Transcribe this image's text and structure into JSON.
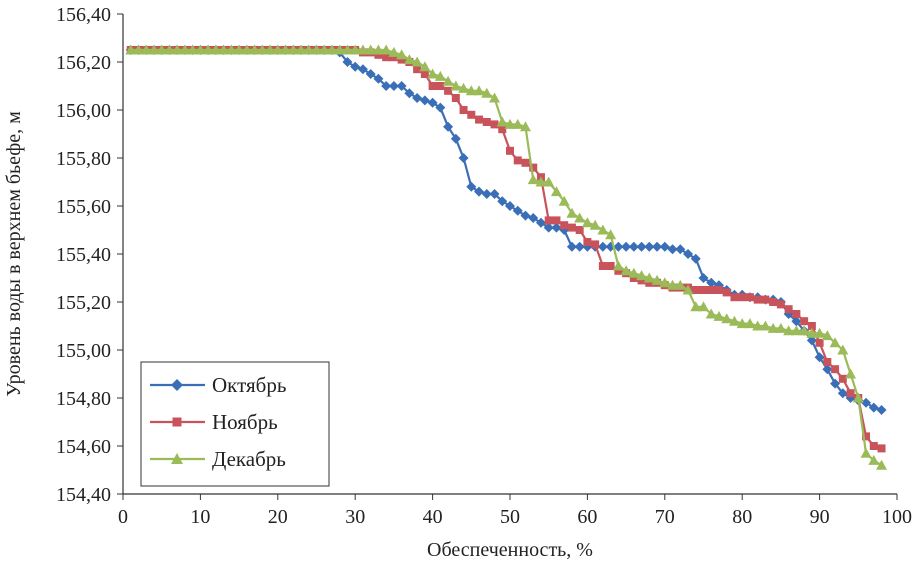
{
  "chart_data": {
    "type": "line",
    "title": "",
    "xlabel": "Обеспеченность, %",
    "ylabel": "Уровень воды в верхнем бьефе, м",
    "xlim": [
      0,
      100
    ],
    "ylim": [
      154.4,
      156.4
    ],
    "x_ticks": [
      0,
      10,
      20,
      30,
      40,
      50,
      60,
      70,
      80,
      90,
      100
    ],
    "x_tick_labels": [
      "0",
      "10",
      "20",
      "30",
      "40",
      "50",
      "60",
      "70",
      "80",
      "90",
      "100"
    ],
    "y_ticks": [
      154.4,
      154.6,
      154.8,
      155.0,
      155.2,
      155.4,
      155.6,
      155.8,
      156.0,
      156.2,
      156.4
    ],
    "y_tick_labels": [
      "154,40",
      "154,60",
      "154,80",
      "155,00",
      "155,20",
      "155,40",
      "155,60",
      "155,80",
      "156,00",
      "156,20",
      "156,40"
    ],
    "grid": false,
    "legend_position": "bottom-left",
    "series": [
      {
        "name": "Октябрь",
        "color": "#3A6FB7",
        "marker": "diamond",
        "points": [
          [
            1,
            156.25
          ],
          [
            2,
            156.25
          ],
          [
            3,
            156.25
          ],
          [
            4,
            156.25
          ],
          [
            5,
            156.25
          ],
          [
            6,
            156.25
          ],
          [
            7,
            156.25
          ],
          [
            8,
            156.25
          ],
          [
            9,
            156.25
          ],
          [
            10,
            156.25
          ],
          [
            11,
            156.25
          ],
          [
            12,
            156.25
          ],
          [
            13,
            156.25
          ],
          [
            14,
            156.25
          ],
          [
            15,
            156.25
          ],
          [
            16,
            156.25
          ],
          [
            17,
            156.25
          ],
          [
            18,
            156.25
          ],
          [
            19,
            156.25
          ],
          [
            20,
            156.25
          ],
          [
            21,
            156.25
          ],
          [
            22,
            156.25
          ],
          [
            23,
            156.25
          ],
          [
            24,
            156.25
          ],
          [
            25,
            156.25
          ],
          [
            26,
            156.25
          ],
          [
            27,
            156.25
          ],
          [
            28,
            156.24
          ],
          [
            29,
            156.2
          ],
          [
            30,
            156.18
          ],
          [
            31,
            156.17
          ],
          [
            32,
            156.15
          ],
          [
            33,
            156.13
          ],
          [
            34,
            156.1
          ],
          [
            35,
            156.1
          ],
          [
            36,
            156.1
          ],
          [
            37,
            156.07
          ],
          [
            38,
            156.05
          ],
          [
            39,
            156.04
          ],
          [
            40,
            156.03
          ],
          [
            41,
            156.01
          ],
          [
            42,
            155.93
          ],
          [
            43,
            155.88
          ],
          [
            44,
            155.8
          ],
          [
            45,
            155.68
          ],
          [
            46,
            155.66
          ],
          [
            47,
            155.65
          ],
          [
            48,
            155.65
          ],
          [
            49,
            155.62
          ],
          [
            50,
            155.6
          ],
          [
            51,
            155.58
          ],
          [
            52,
            155.56
          ],
          [
            53,
            155.55
          ],
          [
            54,
            155.53
          ],
          [
            55,
            155.51
          ],
          [
            56,
            155.51
          ],
          [
            57,
            155.5
          ],
          [
            58,
            155.43
          ],
          [
            59,
            155.43
          ],
          [
            60,
            155.43
          ],
          [
            61,
            155.43
          ],
          [
            62,
            155.43
          ],
          [
            63,
            155.43
          ],
          [
            64,
            155.43
          ],
          [
            65,
            155.43
          ],
          [
            66,
            155.43
          ],
          [
            67,
            155.43
          ],
          [
            68,
            155.43
          ],
          [
            69,
            155.43
          ],
          [
            70,
            155.43
          ],
          [
            71,
            155.42
          ],
          [
            72,
            155.42
          ],
          [
            73,
            155.4
          ],
          [
            74,
            155.38
          ],
          [
            75,
            155.3
          ],
          [
            76,
            155.28
          ],
          [
            77,
            155.27
          ],
          [
            78,
            155.25
          ],
          [
            79,
            155.23
          ],
          [
            80,
            155.23
          ],
          [
            81,
            155.22
          ],
          [
            82,
            155.22
          ],
          [
            83,
            155.21
          ],
          [
            84,
            155.21
          ],
          [
            85,
            155.2
          ],
          [
            86,
            155.15
          ],
          [
            87,
            155.12
          ],
          [
            88,
            155.08
          ],
          [
            89,
            155.04
          ],
          [
            90,
            154.97
          ],
          [
            91,
            154.92
          ],
          [
            92,
            154.86
          ],
          [
            93,
            154.82
          ],
          [
            94,
            154.8
          ],
          [
            95,
            154.79
          ],
          [
            96,
            154.78
          ],
          [
            97,
            154.76
          ],
          [
            98,
            154.75
          ]
        ]
      },
      {
        "name": "Ноябрь",
        "color": "#C8535A",
        "marker": "square",
        "points": [
          [
            1,
            156.25
          ],
          [
            2,
            156.25
          ],
          [
            3,
            156.25
          ],
          [
            4,
            156.25
          ],
          [
            5,
            156.25
          ],
          [
            6,
            156.25
          ],
          [
            7,
            156.25
          ],
          [
            8,
            156.25
          ],
          [
            9,
            156.25
          ],
          [
            10,
            156.25
          ],
          [
            11,
            156.25
          ],
          [
            12,
            156.25
          ],
          [
            13,
            156.25
          ],
          [
            14,
            156.25
          ],
          [
            15,
            156.25
          ],
          [
            16,
            156.25
          ],
          [
            17,
            156.25
          ],
          [
            18,
            156.25
          ],
          [
            19,
            156.25
          ],
          [
            20,
            156.25
          ],
          [
            21,
            156.25
          ],
          [
            22,
            156.25
          ],
          [
            23,
            156.25
          ],
          [
            24,
            156.25
          ],
          [
            25,
            156.25
          ],
          [
            26,
            156.25
          ],
          [
            27,
            156.25
          ],
          [
            28,
            156.25
          ],
          [
            29,
            156.25
          ],
          [
            30,
            156.25
          ],
          [
            31,
            156.24
          ],
          [
            32,
            156.24
          ],
          [
            33,
            156.23
          ],
          [
            34,
            156.22
          ],
          [
            35,
            156.22
          ],
          [
            36,
            156.21
          ],
          [
            37,
            156.2
          ],
          [
            38,
            156.17
          ],
          [
            39,
            156.15
          ],
          [
            40,
            156.1
          ],
          [
            41,
            156.1
          ],
          [
            42,
            156.08
          ],
          [
            43,
            156.05
          ],
          [
            44,
            156.0
          ],
          [
            45,
            155.98
          ],
          [
            46,
            155.96
          ],
          [
            47,
            155.95
          ],
          [
            48,
            155.94
          ],
          [
            49,
            155.92
          ],
          [
            50,
            155.83
          ],
          [
            51,
            155.79
          ],
          [
            52,
            155.78
          ],
          [
            53,
            155.76
          ],
          [
            54,
            155.72
          ],
          [
            55,
            155.54
          ],
          [
            56,
            155.54
          ],
          [
            57,
            155.52
          ],
          [
            58,
            155.51
          ],
          [
            59,
            155.5
          ],
          [
            60,
            155.45
          ],
          [
            61,
            155.44
          ],
          [
            62,
            155.35
          ],
          [
            63,
            155.35
          ],
          [
            64,
            155.33
          ],
          [
            65,
            155.32
          ],
          [
            66,
            155.3
          ],
          [
            67,
            155.29
          ],
          [
            68,
            155.28
          ],
          [
            69,
            155.28
          ],
          [
            70,
            155.27
          ],
          [
            71,
            155.26
          ],
          [
            72,
            155.26
          ],
          [
            73,
            155.26
          ],
          [
            74,
            155.25
          ],
          [
            75,
            155.25
          ],
          [
            76,
            155.25
          ],
          [
            77,
            155.25
          ],
          [
            78,
            155.24
          ],
          [
            79,
            155.22
          ],
          [
            80,
            155.22
          ],
          [
            81,
            155.22
          ],
          [
            82,
            155.21
          ],
          [
            83,
            155.21
          ],
          [
            84,
            155.2
          ],
          [
            85,
            155.19
          ],
          [
            86,
            155.17
          ],
          [
            87,
            155.15
          ],
          [
            88,
            155.12
          ],
          [
            89,
            155.1
          ],
          [
            90,
            155.03
          ],
          [
            91,
            154.95
          ],
          [
            92,
            154.92
          ],
          [
            93,
            154.88
          ],
          [
            94,
            154.82
          ],
          [
            95,
            154.8
          ],
          [
            96,
            154.64
          ],
          [
            97,
            154.6
          ],
          [
            98,
            154.59
          ]
        ]
      },
      {
        "name": "Декабрь",
        "color": "#9BBB59",
        "marker": "triangle",
        "points": [
          [
            1,
            156.25
          ],
          [
            2,
            156.25
          ],
          [
            3,
            156.25
          ],
          [
            4,
            156.25
          ],
          [
            5,
            156.25
          ],
          [
            6,
            156.25
          ],
          [
            7,
            156.25
          ],
          [
            8,
            156.25
          ],
          [
            9,
            156.25
          ],
          [
            10,
            156.25
          ],
          [
            11,
            156.25
          ],
          [
            12,
            156.25
          ],
          [
            13,
            156.25
          ],
          [
            14,
            156.25
          ],
          [
            15,
            156.25
          ],
          [
            16,
            156.25
          ],
          [
            17,
            156.25
          ],
          [
            18,
            156.25
          ],
          [
            19,
            156.25
          ],
          [
            20,
            156.25
          ],
          [
            21,
            156.25
          ],
          [
            22,
            156.25
          ],
          [
            23,
            156.25
          ],
          [
            24,
            156.25
          ],
          [
            25,
            156.25
          ],
          [
            26,
            156.25
          ],
          [
            27,
            156.25
          ],
          [
            28,
            156.25
          ],
          [
            29,
            156.25
          ],
          [
            30,
            156.25
          ],
          [
            31,
            156.25
          ],
          [
            32,
            156.25
          ],
          [
            33,
            156.25
          ],
          [
            34,
            156.25
          ],
          [
            35,
            156.24
          ],
          [
            36,
            156.23
          ],
          [
            37,
            156.21
          ],
          [
            38,
            156.2
          ],
          [
            39,
            156.18
          ],
          [
            40,
            156.15
          ],
          [
            41,
            156.14
          ],
          [
            42,
            156.12
          ],
          [
            43,
            156.1
          ],
          [
            44,
            156.09
          ],
          [
            45,
            156.08
          ],
          [
            46,
            156.08
          ],
          [
            47,
            156.07
          ],
          [
            48,
            156.05
          ],
          [
            49,
            155.95
          ],
          [
            50,
            155.94
          ],
          [
            51,
            155.94
          ],
          [
            52,
            155.93
          ],
          [
            53,
            155.71
          ],
          [
            54,
            155.7
          ],
          [
            55,
            155.7
          ],
          [
            56,
            155.66
          ],
          [
            57,
            155.62
          ],
          [
            58,
            155.57
          ],
          [
            59,
            155.55
          ],
          [
            60,
            155.53
          ],
          [
            61,
            155.52
          ],
          [
            62,
            155.5
          ],
          [
            63,
            155.48
          ],
          [
            64,
            155.35
          ],
          [
            65,
            155.33
          ],
          [
            66,
            155.32
          ],
          [
            67,
            155.31
          ],
          [
            68,
            155.3
          ],
          [
            69,
            155.29
          ],
          [
            70,
            155.28
          ],
          [
            71,
            155.27
          ],
          [
            72,
            155.27
          ],
          [
            73,
            155.25
          ],
          [
            74,
            155.18
          ],
          [
            75,
            155.18
          ],
          [
            76,
            155.15
          ],
          [
            77,
            155.14
          ],
          [
            78,
            155.13
          ],
          [
            79,
            155.12
          ],
          [
            80,
            155.11
          ],
          [
            81,
            155.11
          ],
          [
            82,
            155.1
          ],
          [
            83,
            155.1
          ],
          [
            84,
            155.09
          ],
          [
            85,
            155.09
          ],
          [
            86,
            155.08
          ],
          [
            87,
            155.08
          ],
          [
            88,
            155.08
          ],
          [
            89,
            155.07
          ],
          [
            90,
            155.07
          ],
          [
            91,
            155.06
          ],
          [
            92,
            155.03
          ],
          [
            93,
            155.0
          ],
          [
            94,
            154.9
          ],
          [
            95,
            154.8
          ],
          [
            96,
            154.57
          ],
          [
            97,
            154.54
          ],
          [
            98,
            154.52
          ]
        ]
      }
    ]
  }
}
